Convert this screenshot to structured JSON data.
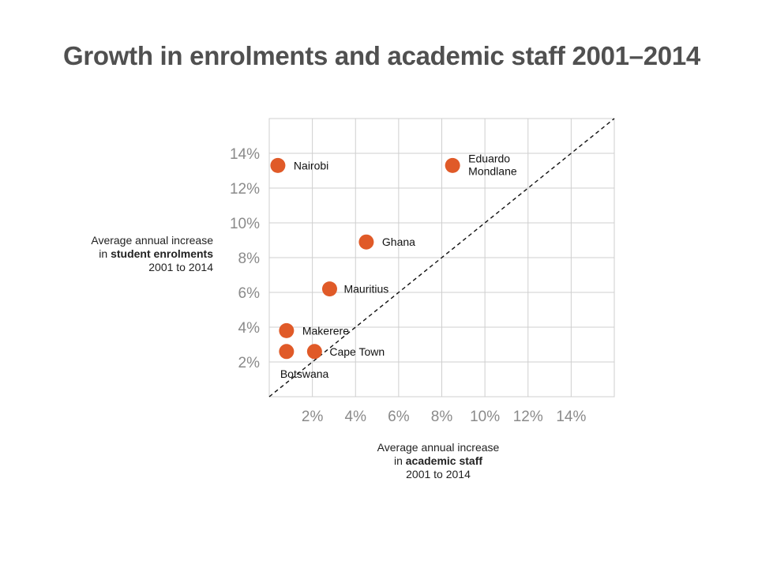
{
  "title": "Growth in enrolments and academic staff 2001–2014",
  "ylabel": {
    "line1": "Average annual increase",
    "line2_prefix": "in ",
    "line2_bold": "student enrolments",
    "line3": "2001 to 2014"
  },
  "xlabel": {
    "line1": "Average annual increase",
    "line2_prefix": "in ",
    "line2_bold": "academic staff",
    "line3": "2001 to 2014"
  },
  "chart_data": {
    "type": "scatter",
    "title": "Growth in enrolments and academic staff 2001–2014",
    "xlim": [
      0,
      16
    ],
    "ylim": [
      0,
      16
    ],
    "x_ticks": [
      2,
      4,
      6,
      8,
      10,
      12,
      14
    ],
    "y_ticks": [
      2,
      4,
      6,
      8,
      10,
      12,
      14
    ],
    "x_tick_labels": [
      "2%",
      "4%",
      "6%",
      "8%",
      "10%",
      "12%",
      "14%"
    ],
    "y_tick_labels": [
      "2%",
      "4%",
      "6%",
      "8%",
      "10%",
      "12%",
      "14%"
    ],
    "grid": true,
    "reference_line": "y = x (dashed)",
    "point_color": "#e05a28",
    "points": [
      {
        "label": "Nairobi",
        "x": 0.4,
        "y": 13.3
      },
      {
        "label": "Eduardo Mondlane",
        "x": 8.5,
        "y": 13.3
      },
      {
        "label": "Ghana",
        "x": 4.5,
        "y": 8.9
      },
      {
        "label": "Mauritius",
        "x": 2.8,
        "y": 6.2
      },
      {
        "label": "Makerere",
        "x": 0.8,
        "y": 3.8
      },
      {
        "label": "Botswana",
        "x": 0.8,
        "y": 2.6
      },
      {
        "label": "Cape Town",
        "x": 2.1,
        "y": 2.6
      }
    ]
  }
}
